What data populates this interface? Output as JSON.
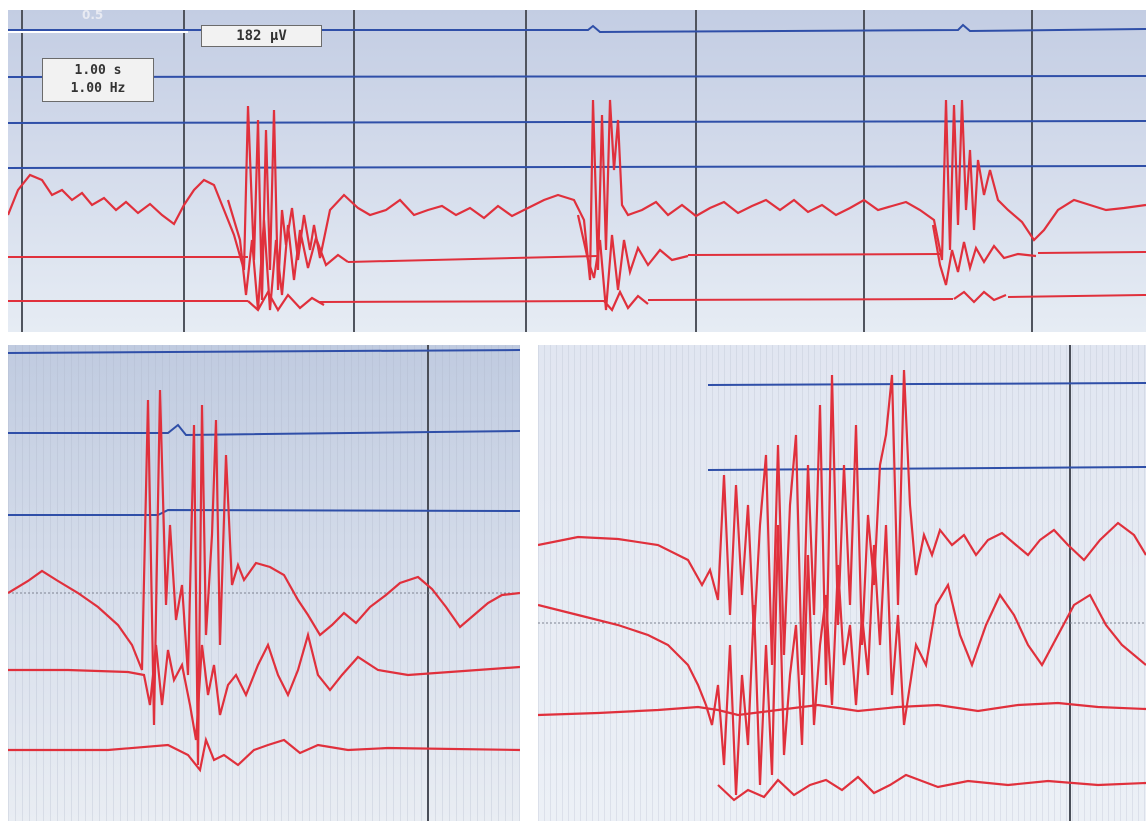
{
  "toolbar": {
    "gain_label": "0.5",
    "amplitude_scale": "182 µV",
    "time_scale": "1.00 s",
    "frequency": "1.00 Hz"
  },
  "colors": {
    "trace_red": "#e0303c",
    "trace_dark_red": "#b0202a",
    "baseline_blue": "#2f4fa8",
    "grid_dark": "#4a4e58",
    "grid_light": "#bcc4d6"
  },
  "panels": [
    {
      "name": "overview-panel",
      "description_visible": false
    },
    {
      "name": "zoom-panel-left"
    },
    {
      "name": "zoom-panel-right"
    }
  ]
}
